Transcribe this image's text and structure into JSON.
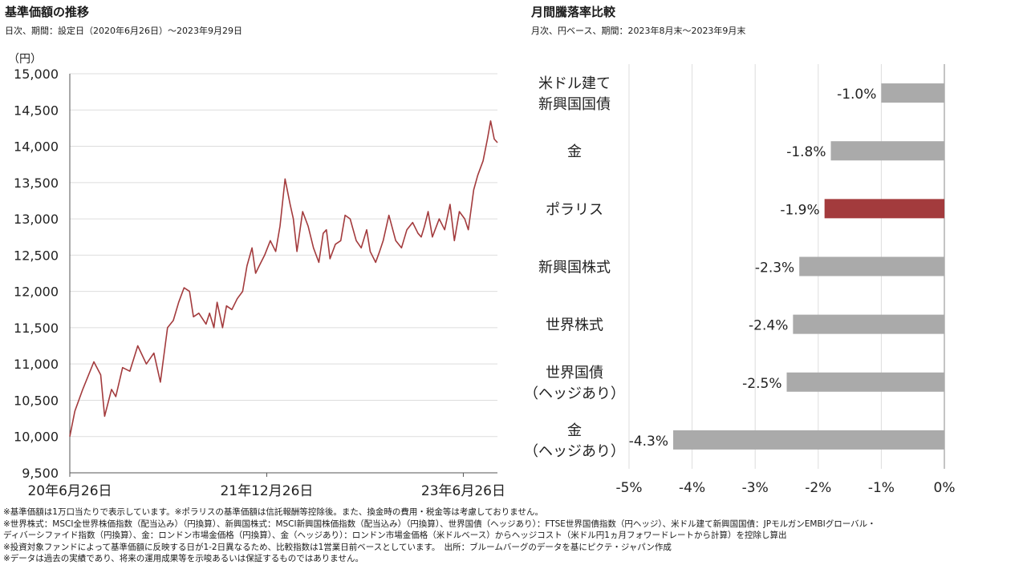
{
  "left_panel": {
    "title": "基準価額の推移",
    "subtitle": "日次、期間：設定日（2020年6月26日）〜2023年9月29日",
    "unit": "（円）"
  },
  "right_panel": {
    "title": "月間騰落率比較",
    "subtitle": "月次、円ベース、期間：2023年8月末〜2023年9月末"
  },
  "colors": {
    "line": "#a33b3d",
    "bar": "#aaaaaa",
    "highlight_bar": "#a33b3d",
    "grid": "#dddddd"
  },
  "chart_data": [
    {
      "type": "line",
      "title": "基準価額の推移",
      "ylabel": "（円）",
      "ylim": [
        9500,
        15000
      ],
      "yticks": [
        9500,
        10000,
        10500,
        11000,
        11500,
        12000,
        12500,
        13000,
        13500,
        14000,
        14500,
        15000
      ],
      "ytick_labels": [
        "9,500",
        "10,000",
        "10,500",
        "11,000",
        "11,500",
        "12,000",
        "12,500",
        "13,000",
        "13,500",
        "14,000",
        "14,500",
        "15,000"
      ],
      "xlim": [
        "2020-06-26",
        "2023-09-29"
      ],
      "xtick_dates": [
        "2020-06-26",
        "2021-12-26",
        "2023-06-26"
      ],
      "xtick_labels": [
        "20年6月26日",
        "21年12月26日",
        "23年6月26日"
      ],
      "grid": true,
      "series": [
        {
          "x": [
            "2020-06-26",
            "2020-07-10",
            "2020-08-01",
            "2020-09-01",
            "2020-09-20",
            "2020-10-01",
            "2020-10-20",
            "2020-11-01",
            "2020-11-20",
            "2020-12-10",
            "2021-01-01",
            "2021-01-25",
            "2021-02-15",
            "2021-03-05",
            "2021-03-25",
            "2021-04-10",
            "2021-04-25",
            "2021-05-10",
            "2021-05-25",
            "2021-06-05",
            "2021-06-20",
            "2021-07-10",
            "2021-07-20",
            "2021-08-01",
            "2021-08-10",
            "2021-08-25",
            "2021-09-05",
            "2021-09-20",
            "2021-10-05",
            "2021-10-20",
            "2021-11-01",
            "2021-11-15",
            "2021-11-25",
            "2021-12-05",
            "2021-12-20",
            "2022-01-05",
            "2022-01-20",
            "2022-02-01",
            "2022-02-15",
            "2022-03-01",
            "2022-03-10",
            "2022-03-20",
            "2022-04-05",
            "2022-04-20",
            "2022-05-05",
            "2022-05-20",
            "2022-06-01",
            "2022-06-10",
            "2022-06-20",
            "2022-07-05",
            "2022-07-20",
            "2022-08-01",
            "2022-08-15",
            "2022-09-01",
            "2022-09-15",
            "2022-09-30",
            "2022-10-10",
            "2022-10-25",
            "2022-11-05",
            "2022-11-15",
            "2022-12-01",
            "2022-12-20",
            "2023-01-05",
            "2023-01-20",
            "2023-02-05",
            "2023-02-20",
            "2023-03-01",
            "2023-03-10",
            "2023-03-20",
            "2023-04-01",
            "2023-04-20",
            "2023-05-05",
            "2023-05-20",
            "2023-06-01",
            "2023-06-15",
            "2023-06-30",
            "2023-07-10",
            "2023-07-25",
            "2023-08-05",
            "2023-08-20",
            "2023-09-01",
            "2023-09-10",
            "2023-09-20",
            "2023-09-29"
          ],
          "y": [
            10000,
            10350,
            10650,
            11030,
            10850,
            10280,
            10650,
            10550,
            10950,
            10900,
            11250,
            11000,
            11150,
            10750,
            11500,
            11600,
            11850,
            12050,
            12000,
            11650,
            11700,
            11550,
            11700,
            11500,
            11850,
            11500,
            11800,
            11750,
            11900,
            12000,
            12350,
            12600,
            12250,
            12350,
            12500,
            12700,
            12550,
            12900,
            13550,
            13200,
            13000,
            12550,
            13100,
            12900,
            12600,
            12400,
            12800,
            12850,
            12450,
            12650,
            12700,
            13050,
            13000,
            12700,
            12600,
            12850,
            12550,
            12400,
            12550,
            12700,
            13050,
            12700,
            12600,
            12850,
            12950,
            12800,
            12750,
            12900,
            13100,
            12750,
            13000,
            12850,
            13200,
            12700,
            13100,
            13000,
            12850,
            13400,
            13600,
            13800,
            14100,
            14350,
            14100,
            14050
          ]
        }
      ]
    },
    {
      "type": "bar",
      "orientation": "horizontal",
      "title": "月間騰落率比較",
      "categories": [
        [
          "米ドル建て",
          "新興国国債"
        ],
        [
          "金"
        ],
        [
          "ポラリス"
        ],
        [
          "新興国株式"
        ],
        [
          "世界株式"
        ],
        [
          "世界国債",
          "（ヘッジあり）"
        ],
        [
          "金",
          "（ヘッジあり）"
        ]
      ],
      "values": [
        -1.0,
        -1.8,
        -1.9,
        -2.3,
        -2.4,
        -2.5,
        -4.3
      ],
      "value_labels": [
        "-1.0%",
        "-1.8%",
        "-1.9%",
        "-2.3%",
        "-2.4%",
        "-2.5%",
        "-4.3%"
      ],
      "highlight": "ポラリス",
      "xlim": [
        -5,
        0
      ],
      "xticks": [
        -5,
        -4,
        -3,
        -2,
        -1,
        0
      ],
      "xtick_labels": [
        "-5%",
        "-4%",
        "-3%",
        "-2%",
        "-1%",
        "0%"
      ],
      "grid": true
    }
  ],
  "notes": [
    "※基準価額は1万口当たりで表示しています。※ポラリスの基準価額は信託報酬等控除後。また、換金時の費用・税金等は考慮しておりません。",
    "※世界株式：MSCI全世界株価指数（配当込み）（円換算）、新興国株式：MSCI新興国株価指数（配当込み）（円換算）、世界国債（ヘッジあり）：FTSE世界国債指数（円ヘッジ）、米ドル建て新興国国債：JPモルガンEMBIグローバル・",
    "ディバーシファイド指数（円換算）、金：ロンドン市場金価格（円換算）、金（ヘッジあり）：ロンドン市場金価格（米ドルベース）からヘッジコスト（米ドル円1ヵ月フォワードレートから計算）を控除し算出",
    "※投資対象ファンドによって基準価額に反映する日が1-2日異なるため、比較指数は1営業日前ベースとしています。　出所：ブルームバーグのデータを基にピクテ・ジャパン作成",
    "※データは過去の実績であり、将来の運用成果等を示唆あるいは保証するものではありません。"
  ]
}
